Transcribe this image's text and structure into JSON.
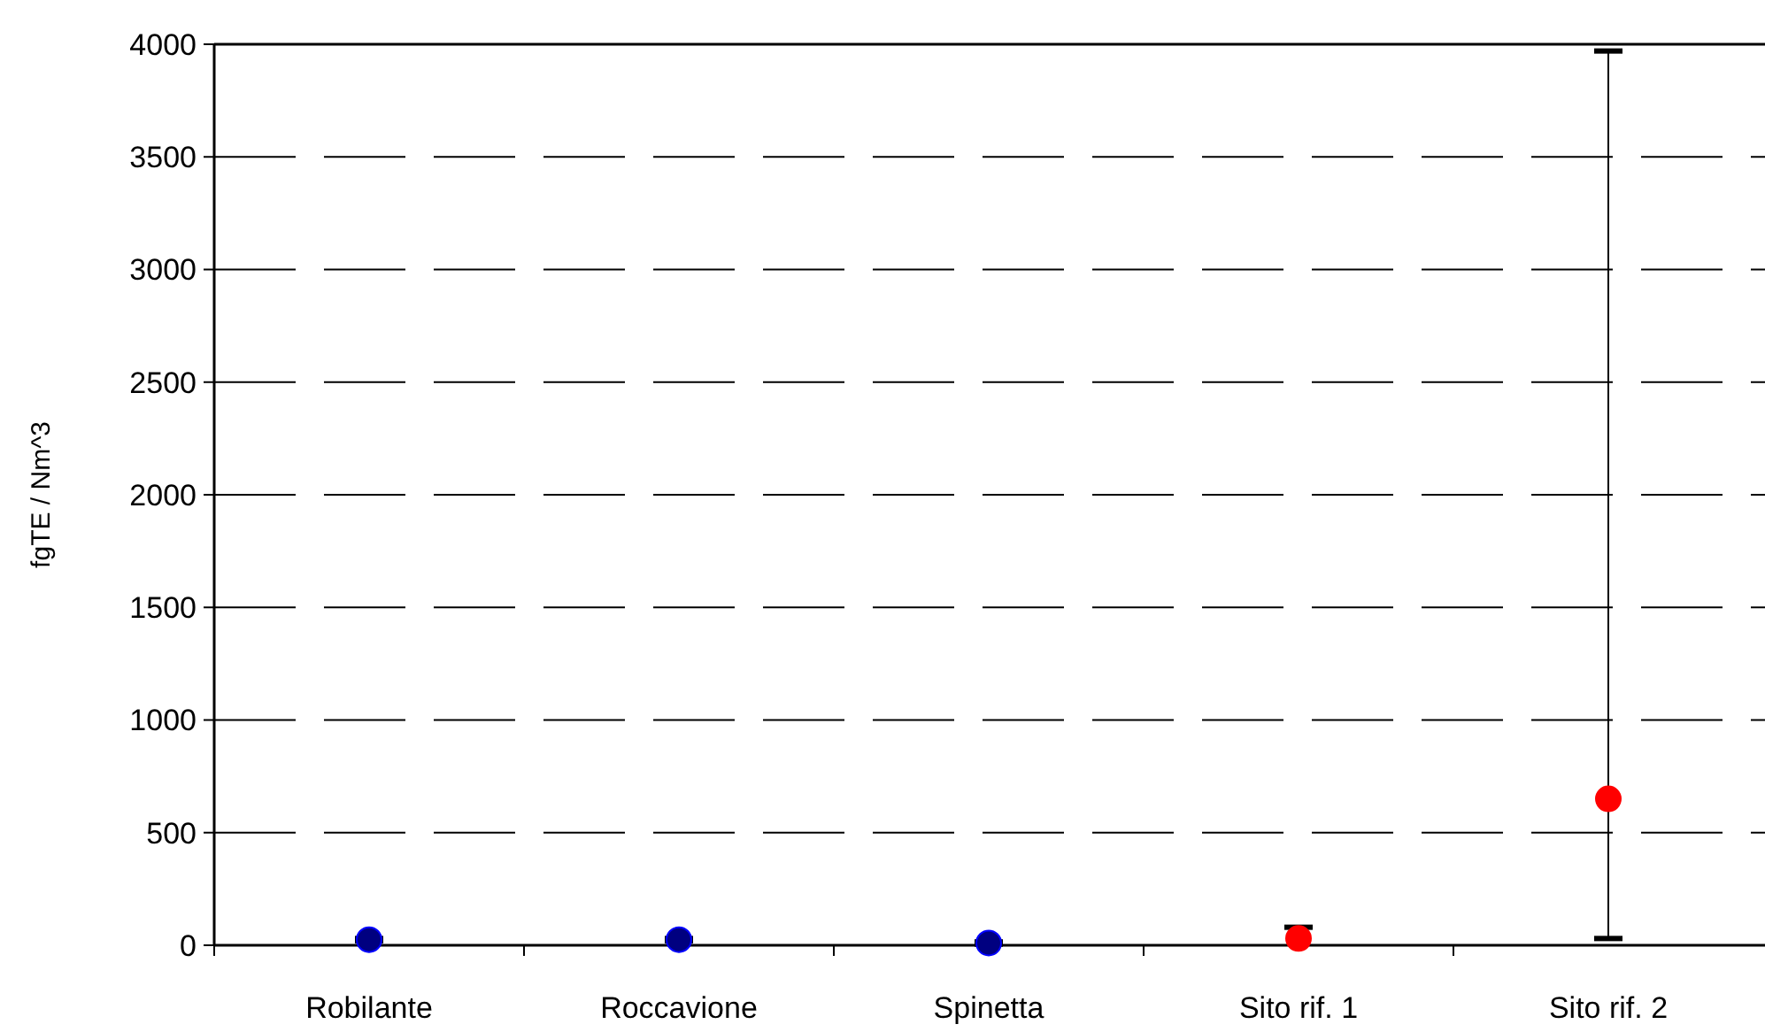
{
  "chart_data": {
    "type": "scatter",
    "ylabel": "fgTE / Nm^3",
    "categories": [
      "Robilante",
      "Roccavione",
      "Spinetta",
      "Sito rif. 1",
      "Sito rif. 2"
    ],
    "series": [
      {
        "color": "#000080",
        "x": [
          "Robilante",
          "Roccavione",
          "Spinetta"
        ],
        "values": [
          25,
          25,
          10
        ],
        "errors": [
          5,
          5,
          5
        ]
      },
      {
        "color": "#ff0000",
        "x": [
          "Sito rif. 1",
          "Sito rif. 2"
        ],
        "values": [
          30,
          650
        ],
        "errors": [
          [
            30,
            80
          ],
          [
            30,
            3970
          ]
        ]
      }
    ],
    "ylim": [
      0,
      4000
    ],
    "yticks": [
      0,
      500,
      1000,
      1500,
      2000,
      2500,
      3000,
      3500,
      4000
    ],
    "grid": "y",
    "marker": "circle"
  }
}
